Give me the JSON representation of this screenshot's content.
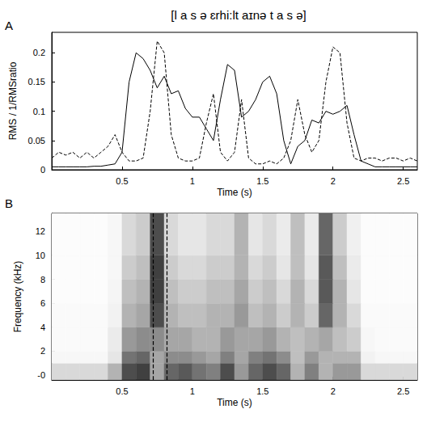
{
  "chart_data": [
    {
      "type": "line",
      "panel_label": "A",
      "title": "[l a s ə ɛrhi:lt aɪnə t a s ə]",
      "x_label": "Time (s)",
      "y_label": "RMS / 1/RMSratio",
      "xlim": [
        0,
        2.6
      ],
      "xticks": [
        0.5,
        1,
        1.5,
        2,
        2.5
      ],
      "ylim": [
        0,
        0.235
      ],
      "yticks": [
        0,
        0.05,
        0.1,
        0.15,
        0.2
      ],
      "grid": false,
      "x": [
        0,
        0.05,
        0.1,
        0.15,
        0.2,
        0.25,
        0.3,
        0.35,
        0.4,
        0.45,
        0.5,
        0.55,
        0.6,
        0.65,
        0.7,
        0.75,
        0.8,
        0.85,
        0.9,
        0.95,
        1,
        1.05,
        1.1,
        1.15,
        1.2,
        1.25,
        1.3,
        1.35,
        1.4,
        1.45,
        1.5,
        1.55,
        1.6,
        1.65,
        1.7,
        1.75,
        1.8,
        1.85,
        1.9,
        1.95,
        2,
        2.05,
        2.1,
        2.15,
        2.2,
        2.25,
        2.3,
        2.35,
        2.4,
        2.45,
        2.5,
        2.55,
        2.6
      ],
      "series": [
        {
          "color": "#000000",
          "line_style": "solid",
          "values": [
            0.005,
            0.005,
            0.005,
            0.005,
            0.005,
            0.005,
            0.006,
            0.006,
            0.008,
            0.01,
            0.03,
            0.15,
            0.2,
            0.19,
            0.17,
            0.14,
            0.16,
            0.13,
            0.135,
            0.105,
            0.09,
            0.09,
            0.07,
            0.05,
            0.12,
            0.18,
            0.17,
            0.09,
            0.1,
            0.12,
            0.15,
            0.16,
            0.13,
            0.05,
            0.01,
            0.04,
            0.05,
            0.085,
            0.08,
            0.1,
            0.095,
            0.1,
            0.11,
            0.06,
            0.015,
            0.01,
            0.005,
            0.005,
            0.005,
            0.005,
            0.005,
            0.005,
            0.005
          ]
        },
        {
          "color": "#000000",
          "line_style": "dashed",
          "values": [
            0.02,
            0.03,
            0.025,
            0.03,
            0.02,
            0.03,
            0.02,
            0.03,
            0.04,
            0.06,
            0.03,
            0.015,
            0.015,
            0.02,
            0.1,
            0.22,
            0.2,
            0.06,
            0.02,
            0.015,
            0.015,
            0.02,
            0.08,
            0.13,
            0.03,
            0.015,
            0.03,
            0.12,
            0.02,
            0.01,
            0.01,
            0.015,
            0.01,
            0.02,
            0.05,
            0.12,
            0.06,
            0.03,
            0.05,
            0.15,
            0.21,
            0.2,
            0.08,
            0.02,
            0.015,
            0.02,
            0.02,
            0.015,
            0.02,
            0.02,
            0.015,
            0.02,
            0.015
          ]
        }
      ]
    },
    {
      "type": "spectrogram",
      "panel_label": "B",
      "x_label": "Time (s)",
      "y_label": "Frequency (kHz)",
      "xlim": [
        0,
        2.6
      ],
      "xticks": [
        0.5,
        1,
        1.5,
        2,
        2.5
      ],
      "ylim": [
        -0.4,
        13.5
      ],
      "yticks": [
        {
          "value": 0,
          "label": "-0"
        },
        2,
        4,
        6,
        8,
        10,
        12
      ],
      "grid": false,
      "color": "#000000",
      "time_edges": [
        0,
        0.1,
        0.2,
        0.3,
        0.4,
        0.5,
        0.6,
        0.7,
        0.8,
        0.9,
        1,
        1.1,
        1.2,
        1.3,
        1.4,
        1.5,
        1.6,
        1.7,
        1.8,
        1.9,
        2,
        2.1,
        2.2,
        2.3,
        2.4,
        2.5,
        2.6
      ],
      "freq_edges": [
        -0.4,
        1,
        2,
        4,
        6,
        8,
        10,
        13.5
      ],
      "intensity": [
        [
          0.15,
          0.15,
          0.15,
          0.15,
          0.3,
          0.7,
          0.75,
          0.35,
          0.6,
          0.65,
          0.55,
          0.5,
          0.7,
          0.4,
          0.6,
          0.7,
          0.6,
          0.3,
          0.5,
          0.3,
          0.4,
          0.4,
          0.15,
          0.15,
          0.15,
          0.15
        ],
        [
          0.03,
          0.03,
          0.03,
          0.03,
          0.1,
          0.55,
          0.6,
          0.35,
          0.45,
          0.45,
          0.4,
          0.35,
          0.5,
          0.35,
          0.5,
          0.55,
          0.45,
          0.25,
          0.4,
          0.3,
          0.3,
          0.3,
          0.05,
          0.03,
          0.03,
          0.03
        ],
        [
          0.02,
          0.02,
          0.02,
          0.02,
          0.08,
          0.4,
          0.45,
          0.45,
          0.35,
          0.35,
          0.3,
          0.3,
          0.4,
          0.35,
          0.35,
          0.4,
          0.3,
          0.25,
          0.3,
          0.35,
          0.25,
          0.2,
          0.03,
          0.02,
          0.02,
          0.02
        ],
        [
          0.02,
          0.02,
          0.02,
          0.02,
          0.05,
          0.3,
          0.35,
          0.7,
          0.3,
          0.25,
          0.25,
          0.3,
          0.3,
          0.4,
          0.25,
          0.3,
          0.2,
          0.3,
          0.2,
          0.6,
          0.3,
          0.15,
          0.02,
          0.02,
          0.02,
          0.02
        ],
        [
          0.01,
          0.01,
          0.01,
          0.01,
          0.04,
          0.25,
          0.3,
          0.75,
          0.25,
          0.2,
          0.2,
          0.25,
          0.25,
          0.35,
          0.2,
          0.25,
          0.15,
          0.3,
          0.15,
          0.65,
          0.3,
          0.1,
          0.01,
          0.01,
          0.01,
          0.01
        ],
        [
          0.01,
          0.01,
          0.01,
          0.01,
          0.03,
          0.2,
          0.25,
          0.75,
          0.2,
          0.15,
          0.15,
          0.2,
          0.2,
          0.3,
          0.15,
          0.2,
          0.1,
          0.25,
          0.1,
          0.65,
          0.25,
          0.08,
          0.01,
          0.01,
          0.01,
          0.01
        ],
        [
          0.01,
          0.01,
          0.01,
          0.01,
          0.03,
          0.15,
          0.2,
          0.7,
          0.15,
          0.1,
          0.1,
          0.15,
          0.15,
          0.3,
          0.1,
          0.15,
          0.08,
          0.25,
          0.08,
          0.6,
          0.2,
          0.06,
          0.01,
          0.01,
          0.01,
          0.01
        ]
      ],
      "vertical_lines": {
        "x": [
          0.72,
          0.82
        ],
        "line_style": "dashed",
        "color": "#000000"
      }
    }
  ]
}
